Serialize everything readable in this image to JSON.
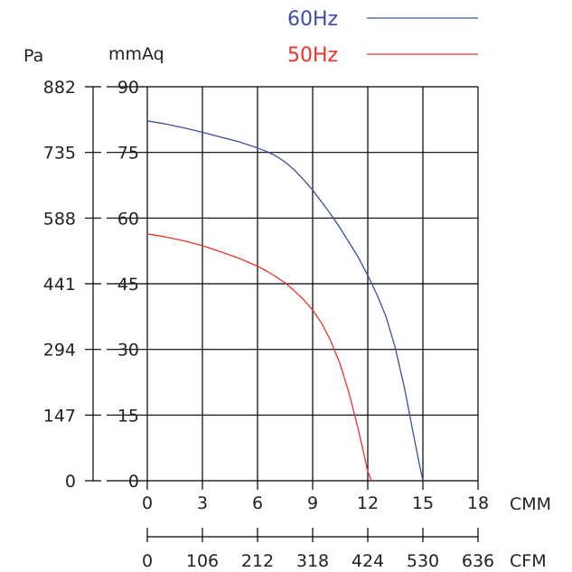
{
  "chart_data": {
    "type": "line",
    "title": "",
    "xlabel": "CMM",
    "x2label": "CFM",
    "ylabel_left": "Pa",
    "ylabel_right": "mmAq",
    "xlim": [
      0,
      18
    ],
    "ylim": [
      0,
      90
    ],
    "grid": true,
    "legend_position": "top-right",
    "x_ticks": [
      0,
      3,
      6,
      9,
      12,
      15,
      18
    ],
    "x_tick_labels": [
      "0",
      "3",
      "6",
      "9",
      "12",
      "15",
      "18"
    ],
    "x2_tick_labels": [
      "0",
      "106",
      "212",
      "318",
      "424",
      "530",
      "636"
    ],
    "y_ticks": [
      0,
      15,
      30,
      45,
      60,
      75,
      90
    ],
    "y_tick_labels_mmaq": [
      "0",
      "15",
      "30",
      "45",
      "60",
      "75",
      "90"
    ],
    "y_tick_labels_pa": [
      "0",
      "147",
      "294",
      "441",
      "588",
      "735",
      "882"
    ],
    "series": [
      {
        "name": "60Hz",
        "color": "#3d4fa0",
        "x": [
          0,
          1,
          2,
          3,
          4,
          5,
          6,
          6.5,
          7,
          7.5,
          8,
          8.5,
          9,
          9.5,
          10,
          10.5,
          11,
          11.5,
          12,
          12.5,
          13,
          13.5,
          14,
          14.5,
          14.8,
          15.0
        ],
        "y": [
          82.2,
          81.5,
          80.6,
          79.6,
          78.5,
          77.4,
          76.0,
          75.2,
          74.2,
          72.8,
          71.0,
          68.8,
          66.4,
          63.6,
          60.8,
          57.7,
          54.3,
          50.9,
          46.9,
          42.5,
          37.4,
          30.3,
          21.1,
          10.3,
          4.0,
          0
        ]
      },
      {
        "name": "50Hz",
        "color": "#e8332a",
        "x": [
          0,
          1,
          2,
          3,
          4,
          5,
          6,
          6.5,
          7,
          7.5,
          8,
          8.5,
          9,
          9.5,
          10,
          10.5,
          11,
          11.5,
          12,
          12.2
        ],
        "y": [
          56.4,
          55.7,
          54.8,
          53.7,
          52.3,
          50.8,
          49.0,
          47.9,
          46.6,
          45.2,
          43.4,
          41.4,
          39.0,
          35.9,
          31.8,
          26.6,
          19.7,
          11.5,
          2.1,
          0
        ]
      }
    ]
  }
}
